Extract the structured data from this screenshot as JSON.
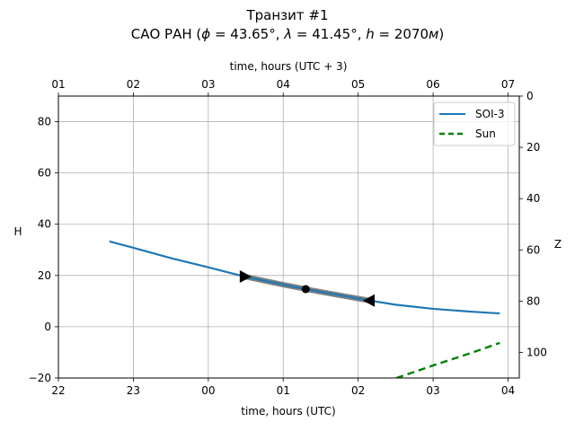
{
  "chart_data": {
    "type": "line",
    "title": "Транзит #1",
    "subtitle": "САО РАН (ϕ = 43.65°, λ = 41.45°, h = 2070м)",
    "subtitle_parts": {
      "prefix": "САО РАН (",
      "phi": "ϕ",
      "phi_val": " = 43.65°, ",
      "lambda": "λ",
      "lambda_val": " = 41.45°, ",
      "h": "h",
      "h_val": " = 2070",
      "unit": "м",
      "suffix": ")"
    },
    "xlabel": "time, hours (UTC)",
    "xlabel_top": "time, hours (UTC + 3)",
    "ylabel": "H",
    "ylabel_right": "Z",
    "xlim": [
      22,
      28.15
    ],
    "ylim": [
      -20,
      90
    ],
    "ylim_right": [
      110,
      0
    ],
    "grid": true,
    "x_ticks": [
      22,
      23,
      24,
      25,
      26,
      27,
      28
    ],
    "x_tick_labels": [
      "22",
      "23",
      "00",
      "01",
      "02",
      "03",
      "04"
    ],
    "x_top_tick_labels": [
      "01",
      "02",
      "03",
      "04",
      "05",
      "06",
      "07"
    ],
    "y_ticks": [
      -20,
      0,
      20,
      40,
      60,
      80
    ],
    "y_tick_labels": [
      "−20",
      "0",
      "20",
      "40",
      "60",
      "80"
    ],
    "y_right_ticks": [
      0,
      20,
      40,
      60,
      80,
      100
    ],
    "y_right_tick_labels": [
      "0",
      "20",
      "40",
      "60",
      "80",
      "100"
    ],
    "legend": {
      "position": "top-right",
      "entries": [
        "SOI-3",
        "Sun"
      ]
    },
    "series": [
      {
        "name": "SOI-3",
        "color": "#1f77b4",
        "style": "solid",
        "x": [
          22.68,
          23.0,
          23.5,
          24.0,
          24.48,
          25.0,
          25.3,
          25.5,
          26.0,
          26.16,
          26.5,
          27.0,
          27.5,
          27.89
        ],
        "y": [
          33.3,
          30.8,
          26.8,
          23.2,
          19.6,
          16.4,
          14.7,
          13.6,
          11.0,
          10.2,
          8.6,
          7.0,
          5.9,
          5.2
        ]
      },
      {
        "name": "Sun",
        "color": "#008000",
        "style": "dashed",
        "x": [
          26.51,
          27.0,
          27.5,
          27.89
        ],
        "y": [
          -20.0,
          -15.1,
          -10.3,
          -6.3
        ]
      }
    ],
    "transit": {
      "color": "#808080",
      "x": [
        24.48,
        25.0,
        25.3,
        25.5,
        26.0,
        26.16
      ],
      "y": [
        19.6,
        16.4,
        14.7,
        13.6,
        11.0,
        10.2
      ],
      "start": {
        "x": 24.48,
        "y": 19.6
      },
      "mid": {
        "x": 25.3,
        "y": 14.7
      },
      "end": {
        "x": 26.16,
        "y": 10.2
      }
    }
  }
}
